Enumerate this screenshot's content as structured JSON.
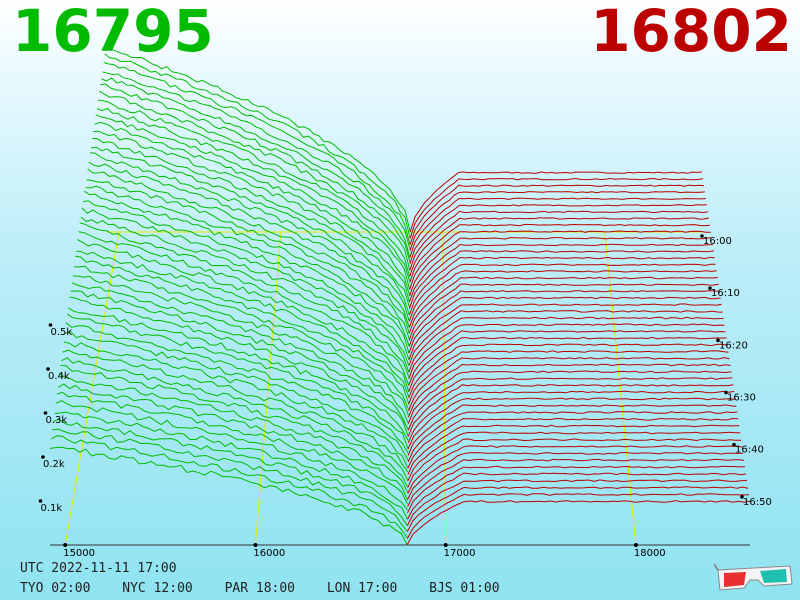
{
  "header": {
    "bid_price": "16795",
    "ask_price": "16802"
  },
  "footer": {
    "utc": "UTC 2022-11-11 17:00",
    "zones": [
      "TYO 02:00",
      "NYC 12:00",
      "PAR 18:00",
      "LON 17:00",
      "BJS 01:00"
    ]
  },
  "colors": {
    "bid": "#00bb00",
    "ask": "#bb0000",
    "grid": "#e8e800"
  },
  "icons": [
    "3d-glasses-icon"
  ],
  "chart_data": {
    "type": "area",
    "x_ticks": [
      "15000",
      "16000",
      "17000",
      "18000"
    ],
    "x_tick_values": [
      15000,
      16000,
      17000,
      18000
    ],
    "x_range": [
      14920,
      18600
    ],
    "y_ticks": [
      "0.1k",
      "0.2k",
      "0.3k",
      "0.4k",
      "0.5k"
    ],
    "y_tick_values": [
      100,
      200,
      300,
      400,
      500
    ],
    "y_range": [
      0,
      600
    ],
    "time_ticks": [
      "16:00",
      "16:10",
      "16:20",
      "16:30",
      "16:40",
      "16:50"
    ],
    "time_tick_values": [
      0,
      10,
      20,
      30,
      40,
      50
    ],
    "time_range": [
      0,
      60
    ],
    "mid_price": 16798,
    "grid": true,
    "series": [
      {
        "side": "bid",
        "values_at_15000": 560,
        "values_at_mid": 0
      },
      {
        "side": "ask",
        "values_at_mid": 0,
        "values_at_18600": 180
      }
    ]
  }
}
